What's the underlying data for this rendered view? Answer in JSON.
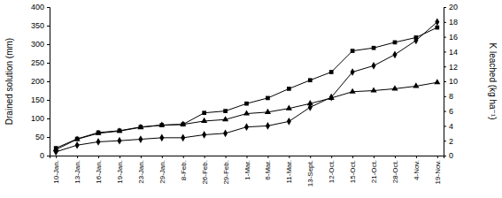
{
  "chart_data": {
    "type": "line",
    "y_label": "Drained solution (mm)",
    "y2_label": "K leached (kg ha⁻¹)",
    "categories": [
      "10-Jan.",
      "13-Jan.",
      "16-Jan.",
      "19-Jan.",
      "23-Jan.",
      "29-Jan.",
      "8-Feb.",
      "26-Feb.",
      "29-Feb.",
      "1-Mar.",
      "6-Mar.",
      "11-Mar.",
      "13-Sept.",
      "12-Oct.",
      "15-Oct.",
      "21-Oct.",
      "28-Oct.",
      "4-Nov.",
      "19-Nov."
    ],
    "ylim": [
      0,
      400
    ],
    "yticks": [
      0,
      50,
      100,
      150,
      200,
      250,
      300,
      350,
      400
    ],
    "y2lim": [
      0,
      20
    ],
    "y2ticks": [
      0,
      2,
      4,
      6,
      8,
      10,
      12,
      14,
      16,
      18,
      20
    ],
    "series": [
      {
        "color": "#000000",
        "marker": "square",
        "line_style": "solid",
        "values": [
          20,
          45,
          62,
          67,
          77,
          82,
          84,
          115,
          120,
          140,
          155,
          180,
          203,
          225,
          282,
          290,
          305,
          318,
          345
        ]
      },
      {
        "color": "#000000",
        "marker": "triangle",
        "line_style": "solid",
        "axis": "y2",
        "values": [
          0.8,
          2.2,
          3.0,
          3.3,
          3.8,
          4.1,
          4.2,
          4.65,
          4.85,
          5.65,
          5.85,
          6.35,
          7.0,
          7.75,
          8.6,
          8.75,
          9.0,
          9.35,
          9.85
        ]
      },
      {
        "color": "#000000",
        "marker": "diamond",
        "line_style": "solid",
        "axis": "y2",
        "values": [
          0.5,
          1.4,
          1.85,
          2.0,
          2.2,
          2.4,
          2.4,
          2.8,
          3.0,
          3.85,
          4.0,
          4.6,
          6.5,
          7.85,
          11.25,
          12.1,
          13.6,
          15.5,
          18.0
        ]
      }
    ]
  }
}
